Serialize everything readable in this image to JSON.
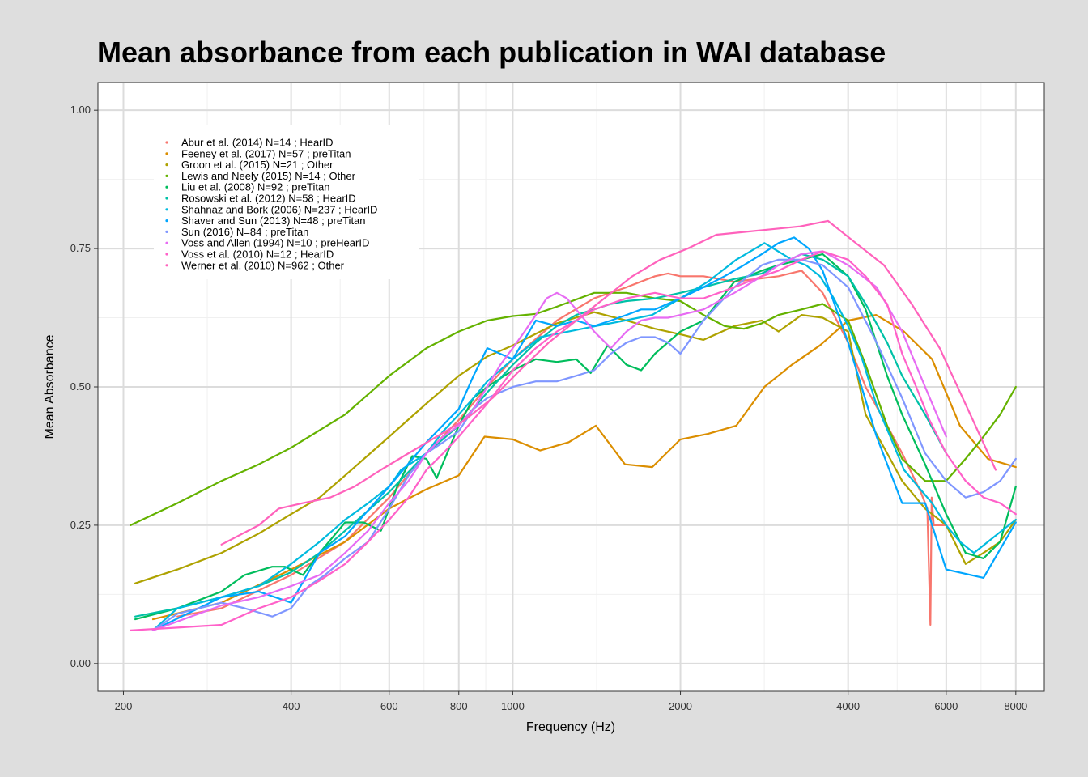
{
  "chart_data": {
    "type": "line",
    "title": "Mean absorbance from each publication in WAI database",
    "xlabel": "Frequency (Hz)",
    "ylabel": "Mean Absorbance",
    "xscale": "log",
    "xlim": [
      180,
      9000
    ],
    "ylim": [
      -0.05,
      1.05
    ],
    "xticks": [
      200,
      400,
      600,
      800,
      1000,
      2000,
      4000,
      6000,
      8000
    ],
    "xtick_labels": [
      "200",
      "400",
      "600",
      "800",
      "1000",
      "2000",
      "4000",
      "6000",
      "8000"
    ],
    "yticks": [
      0,
      0.25,
      0.5,
      0.75,
      1
    ],
    "ytick_labels": [
      "0.00",
      "0.25",
      "0.50",
      "0.75",
      "1.00"
    ],
    "grid": true,
    "legend_position": "top-left",
    "series": [
      {
        "name": "Abur et al. (2014) N=14 ; HearID",
        "color": "#F8766D",
        "x": [
          250,
          300,
          400,
          500,
          600,
          700,
          800,
          900,
          1000,
          1200,
          1400,
          1600,
          1800,
          1900,
          2000,
          2200,
          2500,
          3000,
          3300,
          3600,
          4000,
          4300,
          4700,
          5000,
          5400,
          5550,
          5620,
          5650,
          5700,
          6000
        ],
        "y": [
          0.085,
          0.1,
          0.16,
          0.22,
          0.3,
          0.38,
          0.44,
          0.5,
          0.55,
          0.62,
          0.66,
          0.68,
          0.7,
          0.705,
          0.7,
          0.7,
          0.69,
          0.7,
          0.71,
          0.67,
          0.58,
          0.5,
          0.43,
          0.38,
          0.31,
          0.28,
          0.07,
          0.3,
          0.25,
          0.25
        ]
      },
      {
        "name": "Feeney et al. (2017) N=57 ; preTitan",
        "color": "#DB8E00",
        "x": [
          226,
          300,
          400,
          500,
          600,
          700,
          800,
          890,
          1000,
          1120,
          1260,
          1410,
          1590,
          1780,
          2000,
          2240,
          2520,
          2830,
          3170,
          3560,
          4000,
          4490,
          5040,
          5660,
          6350,
          7130,
          8000
        ],
        "y": [
          0.08,
          0.11,
          0.17,
          0.22,
          0.28,
          0.315,
          0.34,
          0.41,
          0.405,
          0.385,
          0.4,
          0.43,
          0.36,
          0.355,
          0.405,
          0.415,
          0.43,
          0.5,
          0.54,
          0.575,
          0.62,
          0.63,
          0.6,
          0.55,
          0.43,
          0.37,
          0.355
        ]
      },
      {
        "name": "Groon et al. (2015) N=21 ; Other",
        "color": "#AEA200",
        "x": [
          210,
          250,
          300,
          350,
          400,
          450,
          500,
          600,
          700,
          800,
          900,
          1000,
          1200,
          1400,
          1600,
          1800,
          2000,
          2200,
          2500,
          2800,
          3000,
          3300,
          3600,
          4000,
          4300,
          4700,
          5000,
          5500,
          6000,
          6500,
          7000,
          7500,
          8000
        ],
        "y": [
          0.145,
          0.17,
          0.2,
          0.235,
          0.27,
          0.3,
          0.34,
          0.41,
          0.47,
          0.52,
          0.555,
          0.575,
          0.615,
          0.635,
          0.62,
          0.605,
          0.595,
          0.585,
          0.61,
          0.62,
          0.6,
          0.63,
          0.625,
          0.6,
          0.45,
          0.38,
          0.33,
          0.28,
          0.25,
          0.18,
          0.2,
          0.22,
          0.26
        ]
      },
      {
        "name": "Lewis and Neely (2015) N=14 ; Other",
        "color": "#64B200",
        "x": [
          206,
          250,
          300,
          350,
          400,
          500,
          600,
          700,
          800,
          900,
          1000,
          1100,
          1200,
          1400,
          1600,
          1800,
          2000,
          2200,
          2400,
          2600,
          2800,
          3000,
          3300,
          3600,
          4000,
          4300,
          4700,
          5000,
          5500,
          6000,
          6500,
          7000,
          7500,
          8000
        ],
        "y": [
          0.25,
          0.29,
          0.33,
          0.36,
          0.39,
          0.45,
          0.52,
          0.57,
          0.6,
          0.62,
          0.628,
          0.632,
          0.645,
          0.67,
          0.67,
          0.66,
          0.655,
          0.63,
          0.61,
          0.605,
          0.615,
          0.63,
          0.64,
          0.65,
          0.62,
          0.54,
          0.43,
          0.37,
          0.33,
          0.33,
          0.37,
          0.41,
          0.45,
          0.5
        ]
      },
      {
        "name": "Liu et al. (2008) N=92 ; preTitan",
        "color": "#00BD5C",
        "x": [
          210,
          250,
          300,
          330,
          370,
          390,
          420,
          450,
          500,
          540,
          580,
          620,
          660,
          700,
          730,
          800,
          850,
          900,
          1000,
          1100,
          1200,
          1300,
          1380,
          1480,
          1600,
          1700,
          1800,
          2000,
          2200,
          2500,
          2800,
          3000,
          3300,
          3600,
          4000,
          4300,
          4700,
          5000,
          5500,
          6000,
          6500,
          7000,
          7500,
          8000
        ],
        "y": [
          0.08,
          0.1,
          0.13,
          0.16,
          0.175,
          0.175,
          0.16,
          0.2,
          0.255,
          0.255,
          0.24,
          0.32,
          0.375,
          0.37,
          0.335,
          0.43,
          0.48,
          0.5,
          0.53,
          0.55,
          0.545,
          0.55,
          0.525,
          0.575,
          0.54,
          0.53,
          0.56,
          0.6,
          0.62,
          0.69,
          0.71,
          0.72,
          0.73,
          0.74,
          0.7,
          0.64,
          0.52,
          0.45,
          0.36,
          0.27,
          0.2,
          0.19,
          0.22,
          0.32
        ]
      },
      {
        "name": "Rosowski et al. (2012) N=58 ; HearID",
        "color": "#00C1A7",
        "x": [
          210,
          250,
          300,
          350,
          400,
          450,
          500,
          600,
          700,
          800,
          900,
          1000,
          1100,
          1200,
          1300,
          1400,
          1500,
          1600,
          1800,
          2000,
          2200,
          2500,
          2800,
          3000,
          3300,
          3600,
          4000,
          4300,
          4700,
          5000,
          5500,
          6000
        ],
        "y": [
          0.085,
          0.1,
          0.12,
          0.14,
          0.165,
          0.2,
          0.24,
          0.31,
          0.38,
          0.43,
          0.49,
          0.54,
          0.58,
          0.61,
          0.63,
          0.64,
          0.65,
          0.655,
          0.66,
          0.67,
          0.68,
          0.695,
          0.705,
          0.72,
          0.74,
          0.73,
          0.7,
          0.65,
          0.58,
          0.52,
          0.45,
          0.38
        ]
      },
      {
        "name": "Shahnaz and Bork (2006) N=237 ; HearID",
        "color": "#00BADE",
        "x": [
          226,
          250,
          300,
          350,
          400,
          450,
          500,
          550,
          600,
          630,
          700,
          750,
          800,
          850,
          900,
          1000,
          1120,
          1260,
          1410,
          1590,
          1780,
          2000,
          2240,
          2520,
          2830,
          3170,
          3360,
          3560,
          3770,
          4000,
          4240,
          4490,
          4760,
          5040,
          5340,
          5660,
          6000,
          6350,
          6730,
          7130,
          7550,
          8000
        ],
        "y": [
          0.06,
          0.1,
          0.12,
          0.14,
          0.18,
          0.22,
          0.26,
          0.29,
          0.32,
          0.35,
          0.38,
          0.42,
          0.45,
          0.48,
          0.51,
          0.55,
          0.59,
          0.6,
          0.61,
          0.62,
          0.63,
          0.66,
          0.69,
          0.73,
          0.76,
          0.73,
          0.72,
          0.7,
          0.66,
          0.61,
          0.55,
          0.47,
          0.41,
          0.35,
          0.32,
          0.29,
          0.25,
          0.22,
          0.2,
          0.22,
          0.24,
          0.26
        ]
      },
      {
        "name": "Shaver and Sun (2013) N=48 ; preTitan",
        "color": "#00A6FF",
        "x": [
          226,
          300,
          350,
          400,
          450,
          500,
          600,
          700,
          800,
          850,
          900,
          1000,
          1100,
          1200,
          1300,
          1400,
          1500,
          1600,
          1700,
          1800,
          2000,
          2200,
          2400,
          2600,
          2800,
          3000,
          3200,
          3400,
          3600,
          4000,
          4500,
          5000,
          5500,
          6000,
          7000,
          8000
        ],
        "y": [
          0.06,
          0.12,
          0.13,
          0.11,
          0.2,
          0.23,
          0.32,
          0.4,
          0.46,
          0.52,
          0.57,
          0.55,
          0.62,
          0.61,
          0.62,
          0.61,
          0.62,
          0.63,
          0.64,
          0.64,
          0.66,
          0.68,
          0.7,
          0.72,
          0.74,
          0.76,
          0.77,
          0.75,
          0.71,
          0.58,
          0.41,
          0.29,
          0.29,
          0.17,
          0.155,
          0.255
        ]
      },
      {
        "name": "Sun (2016) N=84 ; preTitan",
        "color": "#7F96FF",
        "x": [
          226,
          250,
          300,
          330,
          370,
          400,
          430,
          460,
          500,
          550,
          600,
          650,
          700,
          750,
          800,
          850,
          900,
          1000,
          1100,
          1200,
          1300,
          1400,
          1500,
          1600,
          1700,
          1800,
          1900,
          2000,
          2200,
          2500,
          2800,
          3000,
          3300,
          3600,
          4000,
          4500,
          5000,
          5500,
          6000,
          6500,
          7000,
          7500,
          8000
        ],
        "y": [
          0.06,
          0.09,
          0.11,
          0.1,
          0.085,
          0.1,
          0.14,
          0.16,
          0.19,
          0.22,
          0.28,
          0.34,
          0.38,
          0.4,
          0.42,
          0.46,
          0.48,
          0.5,
          0.51,
          0.51,
          0.52,
          0.53,
          0.56,
          0.58,
          0.59,
          0.59,
          0.58,
          0.56,
          0.62,
          0.68,
          0.72,
          0.73,
          0.73,
          0.72,
          0.68,
          0.58,
          0.48,
          0.38,
          0.33,
          0.3,
          0.31,
          0.33,
          0.37
        ]
      },
      {
        "name": "Voss and Allen (1994) N=10 ; preHearID",
        "color": "#E76BF3",
        "x": [
          226,
          300,
          350,
          400,
          450,
          500,
          550,
          600,
          650,
          700,
          750,
          800,
          850,
          900,
          950,
          1000,
          1050,
          1100,
          1150,
          1200,
          1250,
          1300,
          1400,
          1500,
          1600,
          1700,
          1800,
          1900,
          2000,
          2200,
          2500,
          2800,
          3000,
          3300,
          3600,
          4000,
          4500,
          5000,
          5500,
          6000
        ],
        "y": [
          0.06,
          0.105,
          0.12,
          0.14,
          0.16,
          0.2,
          0.24,
          0.29,
          0.33,
          0.38,
          0.41,
          0.43,
          0.46,
          0.5,
          0.54,
          0.57,
          0.6,
          0.63,
          0.66,
          0.67,
          0.66,
          0.64,
          0.6,
          0.57,
          0.6,
          0.62,
          0.625,
          0.625,
          0.63,
          0.64,
          0.67,
          0.7,
          0.72,
          0.74,
          0.745,
          0.72,
          0.68,
          0.6,
          0.5,
          0.41
        ]
      },
      {
        "name": "Voss et al. (2010) N=12 ; HearID",
        "color": "#FF61C9",
        "x": [
          206,
          250,
          300,
          350,
          400,
          450,
          500,
          550,
          600,
          650,
          700,
          750,
          800,
          900,
          1000,
          1100,
          1200,
          1300,
          1400,
          1600,
          1800,
          2000,
          2200,
          2500,
          2800,
          3000,
          3300,
          3600,
          4000,
          4300,
          4700,
          5000,
          5300,
          5600,
          6000,
          6500,
          7000,
          7500,
          8000
        ],
        "y": [
          0.06,
          0.065,
          0.07,
          0.1,
          0.12,
          0.15,
          0.18,
          0.22,
          0.26,
          0.3,
          0.35,
          0.38,
          0.41,
          0.47,
          0.53,
          0.57,
          0.6,
          0.62,
          0.64,
          0.66,
          0.67,
          0.66,
          0.66,
          0.68,
          0.7,
          0.71,
          0.73,
          0.745,
          0.73,
          0.7,
          0.65,
          0.56,
          0.5,
          0.44,
          0.38,
          0.33,
          0.3,
          0.29,
          0.27
        ]
      },
      {
        "name": "Werner et al. (2010) N=962 ; Other",
        "color": "#FF62BC",
        "x": [
          300,
          350,
          380,
          420,
          470,
          520,
          580,
          650,
          730,
          820,
          920,
          1030,
          1160,
          1300,
          1460,
          1640,
          1840,
          2060,
          2320,
          2600,
          2920,
          3280,
          3680,
          4130,
          4640,
          5200,
          5840,
          6560,
          7360
        ],
        "y": [
          0.215,
          0.25,
          0.28,
          0.29,
          0.3,
          0.32,
          0.35,
          0.38,
          0.41,
          0.44,
          0.48,
          0.53,
          0.58,
          0.62,
          0.66,
          0.7,
          0.73,
          0.75,
          0.775,
          0.78,
          0.785,
          0.79,
          0.8,
          0.76,
          0.72,
          0.65,
          0.57,
          0.46,
          0.35
        ]
      }
    ]
  }
}
